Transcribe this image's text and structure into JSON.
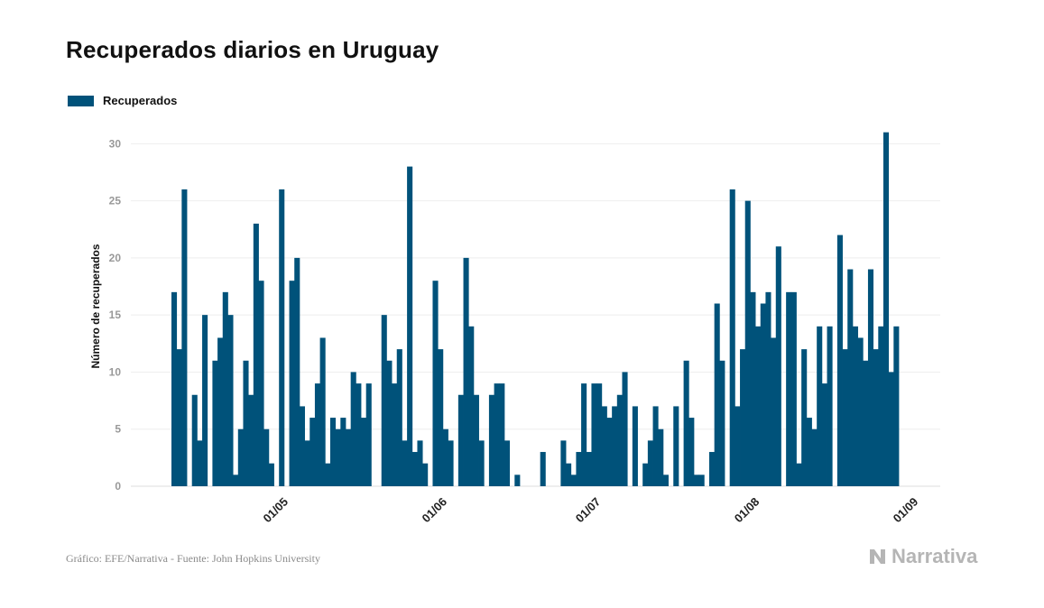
{
  "title": "Recuperados diarios en Uruguay",
  "legend": {
    "label": "Recuperados",
    "color": "#00527a"
  },
  "source": "Gráfico: EFE/Narrativa - Fuente: John Hopkins University",
  "brand": {
    "label": "Narrativa",
    "icon": "narrativa-logo-icon"
  },
  "chart_data": {
    "type": "bar",
    "ylabel": "Número de recuperados",
    "ylim": [
      0,
      32
    ],
    "yticks": [
      0,
      5,
      10,
      15,
      20,
      25,
      30
    ],
    "grid": true,
    "legend_position": "top-left",
    "color": "#00527a",
    "x_start": "10/04",
    "x_end": "03/09",
    "xtick_labels": [
      "01/05",
      "01/06",
      "01/07",
      "01/08",
      "01/09"
    ],
    "xtick_dates": [
      "01/05",
      "01/06",
      "01/07",
      "01/08",
      "01/09"
    ],
    "series": [
      {
        "name": "Recuperados",
        "values": [
          17,
          12,
          26,
          0,
          8,
          4,
          15,
          0,
          11,
          13,
          17,
          15,
          1,
          5,
          11,
          8,
          23,
          18,
          5,
          2,
          0,
          26,
          0,
          18,
          20,
          7,
          4,
          6,
          9,
          13,
          2,
          6,
          5,
          6,
          5,
          10,
          9,
          6,
          9,
          0,
          0,
          15,
          11,
          9,
          12,
          4,
          28,
          3,
          4,
          2,
          0,
          18,
          12,
          5,
          4,
          0,
          8,
          20,
          14,
          8,
          4,
          0,
          8,
          9,
          9,
          4,
          0,
          1,
          0,
          0,
          0,
          0,
          3,
          0,
          0,
          0,
          4,
          2,
          1,
          3,
          9,
          3,
          9,
          9,
          7,
          6,
          7,
          8,
          10,
          0,
          7,
          0,
          2,
          4,
          7,
          5,
          1,
          0,
          7,
          0,
          11,
          6,
          1,
          1,
          0,
          3,
          16,
          11,
          0,
          26,
          7,
          12,
          25,
          17,
          14,
          16,
          17,
          13,
          21,
          0,
          17,
          17,
          2,
          12,
          6,
          5,
          14,
          9,
          14,
          0,
          22,
          12,
          19,
          14,
          13,
          11,
          19,
          12,
          14,
          31,
          10,
          14
        ]
      }
    ]
  }
}
